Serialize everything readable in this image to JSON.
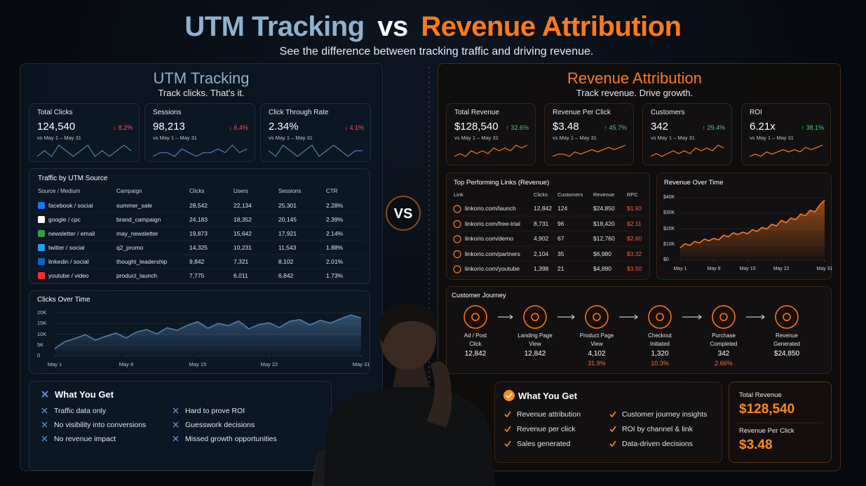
{
  "header": {
    "title_left": "UTM Tracking",
    "title_vs": "vs",
    "title_right": "Revenue Attribution",
    "subtitle": "See the difference between tracking traffic and driving revenue."
  },
  "vs_badge": "VS",
  "utm": {
    "title": "UTM Tracking",
    "subtitle": "Track clicks. That's it.",
    "kpis": [
      {
        "label": "Total Clicks",
        "value": "124,540",
        "change": "↓ 8.2%",
        "period": "vs May 1 – May 31",
        "spark": [
          5,
          6,
          5,
          7,
          6,
          5,
          6,
          7,
          5,
          6,
          5,
          6,
          7,
          6
        ]
      },
      {
        "label": "Sessions",
        "value": "98,213",
        "change": "↓ 6.4%",
        "period": "vs May 1 – May 31",
        "spark": [
          5,
          6,
          6,
          5,
          7,
          6,
          5,
          6,
          6,
          7,
          6,
          8,
          6,
          7
        ]
      },
      {
        "label": "Click Through Rate",
        "value": "2.34%",
        "change": "↓ 4.1%",
        "period": "vs May 1 – May 31",
        "spark": [
          6,
          5,
          7,
          6,
          5,
          6,
          7,
          5,
          6,
          7,
          6,
          5,
          6,
          6
        ]
      }
    ],
    "table": {
      "title": "Traffic by UTM Source",
      "columns": [
        "Source / Medium",
        "Campaign",
        "Clicks",
        "Users",
        "Sessions",
        "CTR"
      ],
      "rows": [
        [
          "facebook / social",
          "summer_sale",
          "28,542",
          "22,134",
          "25,301",
          "2.28%"
        ],
        [
          "google / cpc",
          "brand_campaign",
          "24,183",
          "18,352",
          "20,145",
          "2.39%"
        ],
        [
          "newsletter / email",
          "may_newsletter",
          "19,873",
          "15,642",
          "17,921",
          "2.14%"
        ],
        [
          "twitter / social",
          "q2_promo",
          "14,325",
          "10,231",
          "11,543",
          "1.88%"
        ],
        [
          "linkedin / social",
          "thought_leadership",
          "9,842",
          "7,321",
          "8,102",
          "2.01%"
        ],
        [
          "youtube / video",
          "product_launch",
          "7,775",
          "6,011",
          "6,842",
          "1.73%"
        ]
      ]
    },
    "chart": {
      "type": "area",
      "title": "Clicks Over Time",
      "x": [
        1,
        2,
        3,
        4,
        5,
        6,
        7,
        8,
        9,
        10,
        11,
        12,
        13,
        14,
        15,
        16,
        17,
        18,
        19,
        20,
        21,
        22,
        23,
        24,
        25,
        26,
        27,
        28,
        29,
        30,
        31
      ],
      "values": [
        3200,
        6500,
        8000,
        9800,
        7200,
        9000,
        10500,
        8200,
        11000,
        12200,
        10100,
        13000,
        11800,
        14200,
        15800,
        12800,
        15000,
        14000,
        16200,
        12500,
        14500,
        15300,
        13100,
        16000,
        16800,
        14300,
        16500,
        15200,
        17200,
        19000,
        17500
      ],
      "xlim": [
        1,
        31
      ],
      "xticks": [
        {
          "value": 1,
          "label": "May 1"
        },
        {
          "value": 8,
          "label": "May 8"
        },
        {
          "value": 15,
          "label": "May 15"
        },
        {
          "value": 22,
          "label": "May 22"
        },
        {
          "value": 31,
          "label": "May 31"
        }
      ],
      "ylim": [
        0,
        20000
      ],
      "yticks": [
        0,
        {
          "value": 5000,
          "label": "5K"
        },
        {
          "value": 10000,
          "label": "10K"
        },
        {
          "value": 15000,
          "label": "15K"
        },
        {
          "value": 20000,
          "label": "20K"
        }
      ],
      "color": "#4f7fae"
    },
    "benefits": {
      "title": "What You Get",
      "items": [
        "Traffic data only",
        "No visibility into conversions",
        "No revenue impact",
        "Hard to prove ROI",
        "Guesswork decisions",
        "Missed growth opportunities"
      ]
    }
  },
  "revenue": {
    "title": "Revenue Attribution",
    "subtitle": "Track revenue. Drive growth.",
    "kpis": [
      {
        "label": "Total Revenue",
        "value": "$128,540",
        "change": "↑ 32.6%",
        "period": "vs May 1 – May 31",
        "spark": [
          3,
          4,
          3,
          5,
          4,
          5,
          4,
          6,
          5,
          6,
          5,
          7,
          6,
          7
        ]
      },
      {
        "label": "Revenue Per Click",
        "value": "$3.48",
        "change": "↑ 45.7%",
        "period": "vs May 1 – May 31",
        "spark": [
          3,
          4,
          4,
          3,
          5,
          4,
          5,
          6,
          5,
          6,
          7,
          6,
          7,
          8
        ]
      },
      {
        "label": "Customers",
        "value": "342",
        "change": "↑ 29.4%",
        "period": "vs May 1 – May 31",
        "spark": [
          3,
          4,
          3,
          4,
          5,
          4,
          5,
          4,
          6,
          5,
          6,
          5,
          7,
          6
        ]
      },
      {
        "label": "ROI",
        "value": "6.21x",
        "change": "↑ 38.1%",
        "period": "vs May 1 – May 31",
        "spark": [
          3,
          4,
          3,
          5,
          4,
          5,
          6,
          5,
          6,
          5,
          7,
          6,
          7,
          8
        ]
      }
    ],
    "table": {
      "title": "Top Performing Links (Revenue)",
      "columns": [
        "Link",
        "Clicks",
        "Customers",
        "Revenue",
        "RPC"
      ],
      "rows": [
        [
          "linkorio.com/launch",
          "12,842",
          "124",
          "$24,850",
          "$1.93"
        ],
        [
          "linkorio.com/free-trial",
          "8,731",
          "96",
          "$18,420",
          "$2.11"
        ],
        [
          "linkorio.com/demo",
          "4,902",
          "67",
          "$12,760",
          "$2.60"
        ],
        [
          "linkorio.com/partners",
          "2,104",
          "35",
          "$6,980",
          "$3.32"
        ],
        [
          "linkorio.com/youtube",
          "1,398",
          "21",
          "$4,890",
          "$3.50"
        ]
      ]
    },
    "chart": {
      "type": "area",
      "title": "Revenue Over Time",
      "x": [
        1,
        2,
        3,
        4,
        5,
        6,
        7,
        8,
        9,
        10,
        11,
        12,
        13,
        14,
        15,
        16,
        17,
        18,
        19,
        20,
        21,
        22,
        23,
        24,
        25,
        26,
        27,
        28,
        29,
        30,
        31
      ],
      "values": [
        8000,
        10500,
        9500,
        12000,
        11000,
        13500,
        12500,
        14000,
        13000,
        16000,
        15000,
        17500,
        16500,
        18000,
        17000,
        19500,
        18500,
        21000,
        20000,
        23000,
        22000,
        25500,
        24000,
        27000,
        26000,
        29500,
        28500,
        32000,
        31000,
        35500,
        38500
      ],
      "xlim": [
        1,
        31
      ],
      "xticks": [
        {
          "value": 1,
          "label": "May 1"
        },
        {
          "value": 8,
          "label": "May 8"
        },
        {
          "value": 15,
          "label": "May 15"
        },
        {
          "value": 22,
          "label": "May 22"
        },
        {
          "value": 31,
          "label": "May 31"
        }
      ],
      "ylim": [
        0,
        40000
      ],
      "yticks": [
        {
          "value": 0,
          "label": "$0"
        },
        {
          "value": 10000,
          "label": "$10K"
        },
        {
          "value": 20000,
          "label": "$20K"
        },
        {
          "value": 30000,
          "label": "$30K"
        },
        {
          "value": 40000,
          "label": "$40K"
        }
      ],
      "color": "#ff7a1a"
    },
    "journey": {
      "title": "Customer Journey",
      "steps": [
        {
          "label": "Ad / Post\nClick",
          "value": "12,842"
        },
        {
          "label": "Landing Page\nView",
          "value": "12,842"
        },
        {
          "label": "Product Page\nView",
          "value": "4,102",
          "rate": "31.9%"
        },
        {
          "label": "Checkout\nInitiated",
          "value": "1,320",
          "rate": "10.3%"
        },
        {
          "label": "Purchase\nCompleted",
          "value": "342",
          "rate": "2.66%"
        },
        {
          "label": "Revenue\nGenerated",
          "value": "$24,850"
        }
      ]
    },
    "benefits": {
      "title": "What You Get",
      "items": [
        "Revenue attribution",
        "Revenue per click",
        "Sales generated",
        "Customer journey insights",
        "ROI by channel & link",
        "Data-driven decisions"
      ]
    },
    "totals": [
      {
        "label": "Total Revenue",
        "value": "$128,540"
      },
      {
        "label": "Revenue Per Click",
        "value": "$3.48"
      }
    ]
  }
}
